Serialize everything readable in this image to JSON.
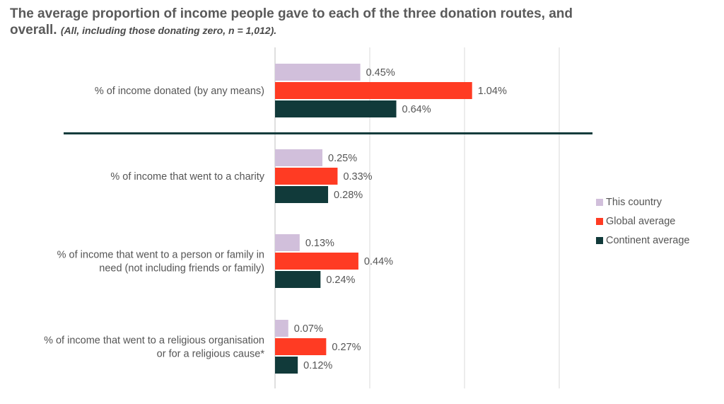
{
  "title": {
    "main": "The average proportion of income people gave to each of the three donation routes, and overall.",
    "subtitle": "(All, including those donating zero, n = 1,012)."
  },
  "chart_data": {
    "type": "bar",
    "orientation": "horizontal",
    "categories": [
      "% of income donated (by any means)",
      "% of income that went to a charity",
      "% of income that went to a person or family in need (not including friends or family)",
      "% of income that went to a religious organisation or for a religious cause*"
    ],
    "category_lines": [
      [
        "% of income donated (by any means)"
      ],
      [
        "% of income that went to a charity"
      ],
      [
        "% of income that went to a person or family in",
        "need (not including friends or family)"
      ],
      [
        "% of income that went to a religious organisation",
        "or for a religious cause*"
      ]
    ],
    "series": [
      {
        "name": "This country",
        "color": "#d1bfdb",
        "values": [
          0.45,
          0.25,
          0.13,
          0.07
        ],
        "labels": [
          "0.45%",
          "0.25%",
          "0.13%",
          "0.07%"
        ]
      },
      {
        "name": "Global average",
        "color": "#ff3b23",
        "values": [
          1.04,
          0.33,
          0.44,
          0.27
        ],
        "labels": [
          "1.04%",
          "0.33%",
          "0.44%",
          "0.27%"
        ]
      },
      {
        "name": "Continent average",
        "color": "#113a3a",
        "values": [
          0.64,
          0.28,
          0.24,
          0.12
        ],
        "labels": [
          "0.64%",
          "0.28%",
          "0.24%",
          "0.12%"
        ]
      }
    ],
    "xlim": [
      0,
      1.5
    ],
    "grid": true,
    "axis_tick_labels": false,
    "legend_position": "right",
    "separator_after_category": 0
  }
}
